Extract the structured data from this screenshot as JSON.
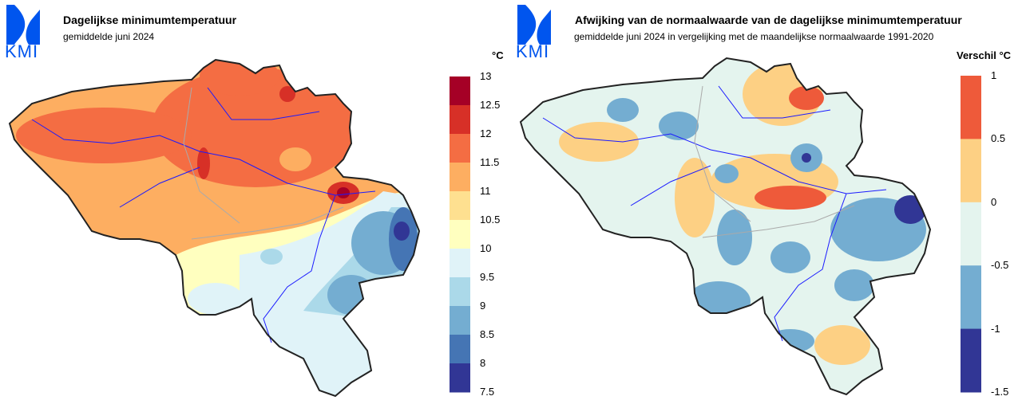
{
  "left_panel": {
    "logo_text": "KMI",
    "title": "Dagelijkse minimumtemperatuur",
    "subtitle": "gemiddelde juni 2024",
    "legend": {
      "unit": "°C",
      "labels": [
        "13",
        "12.5",
        "12",
        "11.5",
        "11",
        "10.5",
        "10",
        "9.5",
        "9",
        "8.5",
        "8",
        "7.5"
      ],
      "colors": [
        "#a50026",
        "#d73027",
        "#f46d43",
        "#fdae61",
        "#fee090",
        "#ffffbf",
        "#e0f3f8",
        "#abd9e9",
        "#74add1",
        "#4575b4",
        "#313695"
      ]
    }
  },
  "right_panel": {
    "logo_text": "KMI",
    "title": "Afwijking van de normaalwaarde van de dagelijkse minimumtemperatuur",
    "subtitle": "gemiddelde juni 2024 in vergelijking met de maandelijkse normaalwaarde 1991-2020",
    "legend": {
      "unit": "Verschil °C",
      "labels": [
        "1",
        "0.5",
        "0",
        "-0.5",
        "-1",
        "-1.5"
      ],
      "colors": [
        "#ee5a3a",
        "#fdd084",
        "#e4f4ee",
        "#74add1",
        "#313695"
      ]
    }
  },
  "colors": {
    "logo": "#0055ee",
    "river": "#1a1aff",
    "border": "#222222",
    "province": "#aaaaaa"
  }
}
